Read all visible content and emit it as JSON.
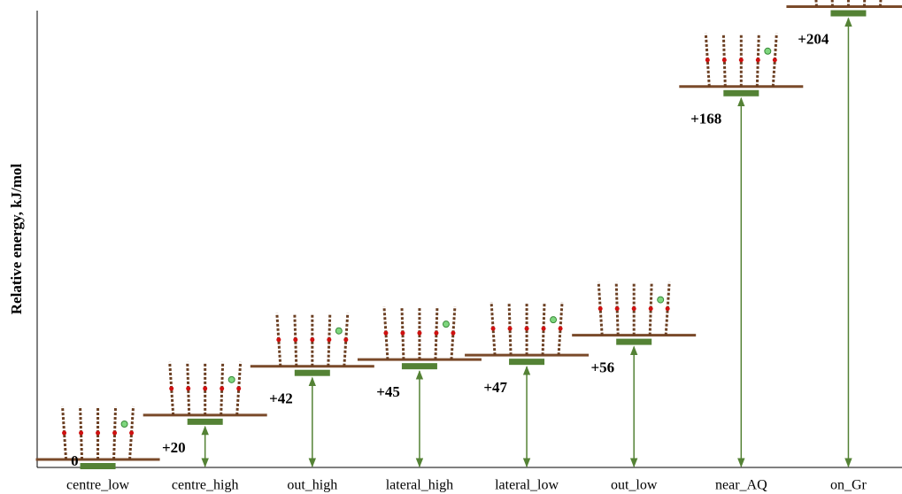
{
  "chart_data": {
    "type": "level",
    "y_label": "Relative energy, kJ/mol",
    "categories": [
      "centre_low",
      "centre_high",
      "out_high",
      "lateral_high",
      "lateral_low",
      "out_low",
      "near_AQ",
      "on_Gr"
    ],
    "values": [
      0,
      20,
      42,
      45,
      47,
      56,
      168,
      204
    ],
    "value_labels": [
      "0",
      "+20",
      "+42",
      "+45",
      "+47",
      "+56",
      "+168",
      "+204"
    ],
    "color": "#548235",
    "ylim": [
      0,
      205
    ]
  }
}
